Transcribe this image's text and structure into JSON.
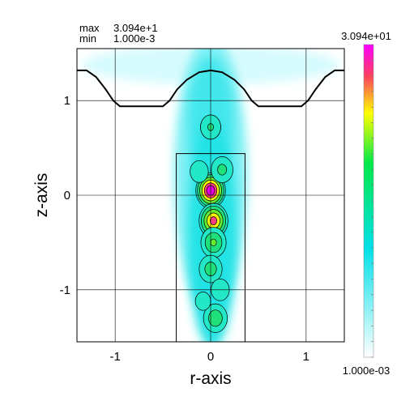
{
  "chart_data": {
    "type": "heatmap",
    "header": {
      "max_label": "max",
      "max_value": "3.094e+1",
      "min_label": "min",
      "min_value": "1.000e-3"
    },
    "xlabel": "r-axis",
    "ylabel": "z-axis",
    "xlim": [
      -1.4,
      1.4
    ],
    "ylim": [
      -1.55,
      1.55
    ],
    "x_ticks": [
      {
        "value": -1,
        "label": "-1"
      },
      {
        "value": 0,
        "label": "0"
      },
      {
        "value": 1,
        "label": "1"
      }
    ],
    "y_ticks": [
      {
        "value": -1,
        "label": "-1"
      },
      {
        "value": 0,
        "label": "0"
      },
      {
        "value": 1,
        "label": "1"
      }
    ],
    "grid": true,
    "colorbar": {
      "max_label": "3.094e+01",
      "min_label": "1.000e-03",
      "colors": [
        "#ffffff",
        "#00e0e8",
        "#00e84a",
        "#ffff00",
        "#ff4060",
        "#ff00ff"
      ]
    },
    "boundary_outline": [
      [
        -1.4,
        1.32
      ],
      [
        -1.3,
        1.32
      ],
      [
        -1.2,
        1.25
      ],
      [
        -1.1,
        1.12
      ],
      [
        -1.02,
        1.0
      ],
      [
        -0.95,
        0.94
      ],
      [
        -0.5,
        0.94
      ],
      [
        -0.43,
        1.0
      ],
      [
        -0.35,
        1.12
      ],
      [
        -0.25,
        1.22
      ],
      [
        -0.12,
        1.3
      ],
      [
        0.0,
        1.32
      ],
      [
        0.12,
        1.3
      ],
      [
        0.25,
        1.22
      ],
      [
        0.35,
        1.12
      ],
      [
        0.43,
        1.0
      ],
      [
        0.5,
        0.94
      ],
      [
        0.95,
        0.94
      ],
      [
        1.02,
        1.0
      ],
      [
        1.1,
        1.12
      ],
      [
        1.2,
        1.25
      ],
      [
        1.3,
        1.32
      ],
      [
        1.4,
        1.32
      ]
    ],
    "rectangle": {
      "r_min": -0.36,
      "r_max": 0.36,
      "z_min": -1.55,
      "z_max": 0.44
    },
    "hotspots": [
      {
        "r": 0.0,
        "z": 0.05,
        "value": 30.94
      },
      {
        "r": 0.03,
        "z": -0.27,
        "value": 24.0
      },
      {
        "r": 0.0,
        "z": 0.72,
        "value": 7.0
      },
      {
        "r": 0.0,
        "z": 0.72,
        "value": 7.0
      },
      {
        "r": 0.03,
        "z": -0.5,
        "value": 12.0
      },
      {
        "r": 0.0,
        "z": -0.78,
        "value": 9.0
      },
      {
        "r": 0.05,
        "z": -1.3,
        "value": 10.0
      },
      {
        "r": 0.12,
        "z": 0.27,
        "value": 8.0
      },
      {
        "r": -0.12,
        "z": 0.25,
        "value": 6.0
      },
      {
        "r": 0.1,
        "z": -1.0,
        "value": 6.0
      },
      {
        "r": -0.08,
        "z": -1.12,
        "value": 5.0
      }
    ]
  }
}
